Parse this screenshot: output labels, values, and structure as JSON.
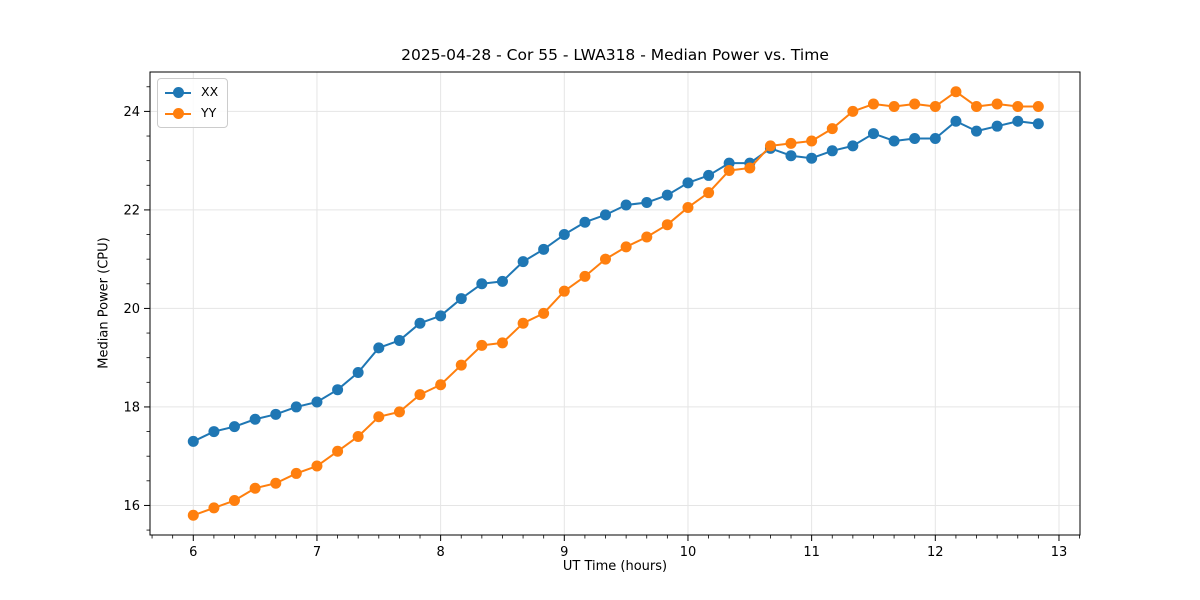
{
  "chart_data": {
    "type": "line",
    "title": "2025-04-28 - Cor 55 - LWA318 - Median Power vs. Time",
    "xlabel": "UT Time (hours)",
    "ylabel": "Median Power (CPU)",
    "xlim": [
      5.65,
      13.17
    ],
    "ylim": [
      15.4,
      24.8
    ],
    "x_ticks": [
      6,
      7,
      8,
      9,
      10,
      11,
      12,
      13
    ],
    "y_ticks": [
      16,
      18,
      20,
      22,
      24
    ],
    "x_minor_ticks_per_unit": 6,
    "y_minor_tick_step": 0.5,
    "grid": "major-only",
    "grid_color": "#e5e5e5",
    "axis_color": "#000000",
    "background_color": "#ffffff",
    "marker": "circle",
    "legend_position": "upper-left",
    "x": [
      6.0,
      6.167,
      6.333,
      6.5,
      6.667,
      6.833,
      7.0,
      7.167,
      7.333,
      7.5,
      7.667,
      7.833,
      8.0,
      8.167,
      8.333,
      8.5,
      8.667,
      8.833,
      9.0,
      9.167,
      9.333,
      9.5,
      9.667,
      9.833,
      10.0,
      10.167,
      10.333,
      10.5,
      10.667,
      10.833,
      11.0,
      11.167,
      11.333,
      11.5,
      11.667,
      11.833,
      12.0,
      12.167,
      12.333,
      12.5,
      12.667,
      12.833
    ],
    "series": [
      {
        "name": "XX",
        "color": "#1f77b4",
        "values": [
          17.3,
          17.5,
          17.6,
          17.75,
          17.85,
          18.0,
          18.1,
          18.35,
          18.7,
          19.2,
          19.35,
          19.7,
          19.85,
          20.2,
          20.5,
          20.55,
          20.95,
          21.2,
          21.5,
          21.75,
          21.9,
          22.1,
          22.15,
          22.3,
          22.55,
          22.7,
          22.95,
          22.95,
          23.25,
          23.1,
          23.05,
          23.2,
          23.3,
          23.55,
          23.4,
          23.45,
          23.45,
          23.8,
          23.6,
          23.7,
          23.8,
          23.75
        ]
      },
      {
        "name": "YY",
        "color": "#ff7f0e",
        "values": [
          15.8,
          15.95,
          16.1,
          16.35,
          16.45,
          16.65,
          16.8,
          17.1,
          17.4,
          17.8,
          17.9,
          18.25,
          18.45,
          18.85,
          19.25,
          19.3,
          19.7,
          19.9,
          20.35,
          20.65,
          21.0,
          21.25,
          21.45,
          21.7,
          22.05,
          22.35,
          22.8,
          22.85,
          23.3,
          23.35,
          23.4,
          23.65,
          24.0,
          24.15,
          24.1,
          24.15,
          24.1,
          24.4,
          24.1,
          24.15,
          24.1,
          24.1
        ]
      }
    ]
  }
}
